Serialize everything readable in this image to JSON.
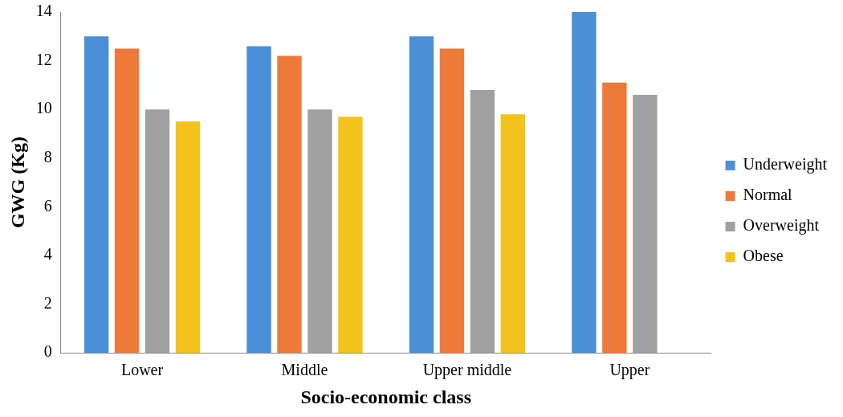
{
  "chart_data": {
    "type": "bar",
    "xlabel": "Socio-economic class",
    "ylabel": "GWG (Kg)",
    "categories": [
      "Lower",
      "Middle",
      "Upper middle",
      "Upper"
    ],
    "series": [
      {
        "name": "Underweight",
        "color": "#4a8fd8",
        "values": [
          13.0,
          12.6,
          13.0,
          14.0
        ]
      },
      {
        "name": "Normal",
        "color": "#ee7a3a",
        "values": [
          12.5,
          12.2,
          12.5,
          11.1
        ]
      },
      {
        "name": "Overweight",
        "color": "#a0a0a0",
        "values": [
          10.0,
          10.0,
          10.8,
          10.6
        ]
      },
      {
        "name": "Obese",
        "color": "#f4c21c",
        "values": [
          9.5,
          9.7,
          9.8,
          null
        ]
      }
    ],
    "ylim": [
      0,
      14
    ],
    "yticks": [
      0,
      2,
      4,
      6,
      8,
      10,
      12,
      14
    ],
    "grid": false,
    "legend": "right"
  }
}
